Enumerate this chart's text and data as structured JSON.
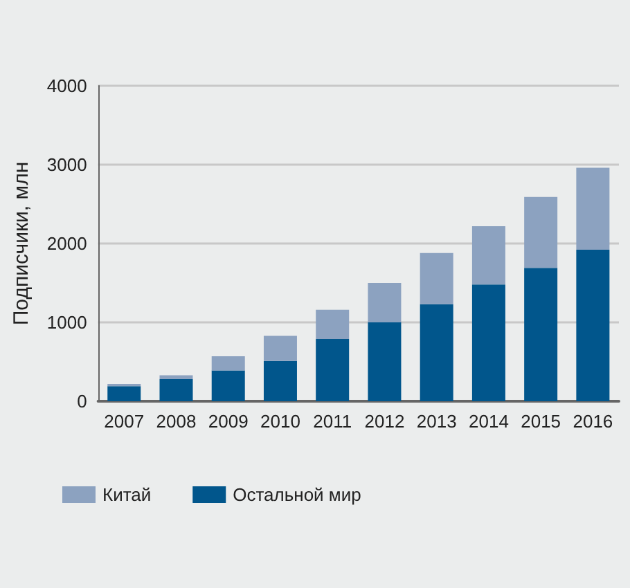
{
  "chart_data": {
    "type": "bar",
    "ylabel": "Подписчики, млн",
    "categories": [
      "2007",
      "2008",
      "2009",
      "2010",
      "2011",
      "2012",
      "2013",
      "2014",
      "2015",
      "2016"
    ],
    "series": [
      {
        "name": "Остальной мир",
        "color": "#01568c",
        "values": [
          190,
          280,
          390,
          510,
          790,
          1000,
          1230,
          1480,
          1690,
          1920
        ]
      },
      {
        "name": "Китай",
        "color": "#8ca2c0",
        "values": [
          30,
          50,
          180,
          320,
          370,
          500,
          650,
          740,
          900,
          1040
        ]
      }
    ],
    "stacked": true,
    "ylim": [
      0,
      4000
    ],
    "yticks": [
      0,
      1000,
      2000,
      3000,
      4000
    ],
    "grid": "y",
    "legend": "bottom"
  }
}
